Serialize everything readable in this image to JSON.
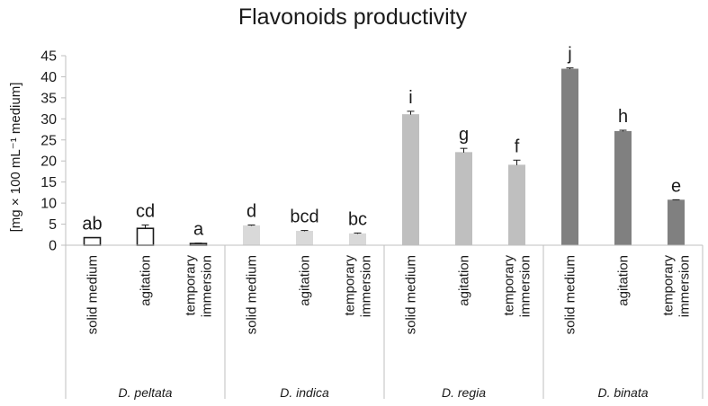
{
  "chart_data": {
    "type": "bar",
    "title": "Flavonoids productivity",
    "ylabel": "[mg × 100 mL⁻¹ medium]",
    "ylim": [
      0,
      45
    ],
    "yticks": [
      0,
      5,
      10,
      15,
      20,
      25,
      30,
      35,
      40,
      45
    ],
    "grid": false,
    "groups": [
      {
        "name": "D. peltata",
        "color": "#ffffff",
        "stroke": "#1a1a1a",
        "bars": [
          {
            "category": [
              "solid medium"
            ],
            "value": 1.8,
            "error": 0.0,
            "letter": "ab"
          },
          {
            "category": [
              "agitation"
            ],
            "value": 4.0,
            "error": 0.8,
            "letter": "cd"
          },
          {
            "category": [
              "temporary",
              "immersion"
            ],
            "value": 0.4,
            "error": 0.1,
            "letter": "a"
          }
        ]
      },
      {
        "name": "D. indica",
        "color": "#d9d9d9",
        "stroke": "#d9d9d9",
        "bars": [
          {
            "category": [
              "solid medium"
            ],
            "value": 4.6,
            "error": 0.2,
            "letter": "d"
          },
          {
            "category": [
              "agitation"
            ],
            "value": 3.3,
            "error": 0.2,
            "letter": "bcd"
          },
          {
            "category": [
              "temporary",
              "immersion"
            ],
            "value": 2.7,
            "error": 0.2,
            "letter": "bc"
          }
        ]
      },
      {
        "name": "D. regia",
        "color": "#bfbfbf",
        "stroke": "#bfbfbf",
        "bars": [
          {
            "category": [
              "solid medium"
            ],
            "value": 31.0,
            "error": 0.8,
            "letter": "i"
          },
          {
            "category": [
              "agitation"
            ],
            "value": 22.0,
            "error": 1.0,
            "letter": "g"
          },
          {
            "category": [
              "temporary",
              "immersion"
            ],
            "value": 19.0,
            "error": 1.2,
            "letter": "f"
          }
        ]
      },
      {
        "name": "D. binata",
        "color": "#808080",
        "stroke": "#808080",
        "bars": [
          {
            "category": [
              "solid medium"
            ],
            "value": 41.8,
            "error": 0.3,
            "letter": "j"
          },
          {
            "category": [
              "agitation"
            ],
            "value": 27.0,
            "error": 0.3,
            "letter": "h"
          },
          {
            "category": [
              "temporary",
              "immersion"
            ],
            "value": 10.7,
            "error": 0.1,
            "letter": "e"
          }
        ]
      }
    ]
  }
}
